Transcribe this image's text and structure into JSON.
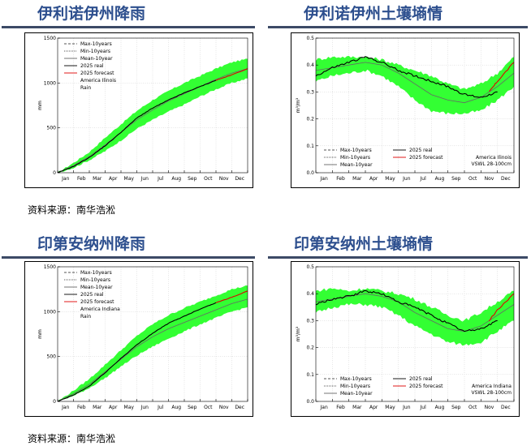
{
  "titles": {
    "t1": "伊利诺伊州降雨",
    "t2": "伊利诺伊州土壤墒情",
    "t3": "印第安纳州降雨",
    "t4": "印第安纳州土壤墒情"
  },
  "source": {
    "s1": "资料来源：南华浩淞",
    "s2": "资料来源：南华浩淞"
  },
  "colors": {
    "band": "#33ff33",
    "real": "#000000",
    "forecast": "#dd0000",
    "mean": "#666666",
    "title": "#2d4f8e"
  },
  "chart_data": [
    {
      "type": "line",
      "id": "il_rain",
      "ylabel": "mm",
      "ylim": [
        0,
        1500
      ],
      "yticks": [
        "0",
        "500",
        "1000",
        "1500"
      ],
      "yticks_val": [
        0,
        500,
        1000,
        1500
      ],
      "months": [
        "Jan",
        "Feb",
        "Mar",
        "Apr",
        "May",
        "Jun",
        "Jul",
        "Aug",
        "Sep",
        "Oct",
        "Nov",
        "Dec"
      ],
      "legend": {
        "max": "Max-10years",
        "min": "Min-10years",
        "mean": "Mean-10year",
        "real": "2025 real",
        "forecast": "2025 forecast",
        "region": "America Ilinois",
        "var": "Rain"
      },
      "x": [
        0,
        1,
        2,
        3,
        4,
        5,
        6,
        7,
        8,
        9,
        10,
        11,
        12
      ],
      "band_max": [
        0,
        110,
        230,
        390,
        540,
        690,
        810,
        910,
        1000,
        1080,
        1160,
        1230,
        1270
      ],
      "band_min": [
        0,
        55,
        140,
        240,
        360,
        490,
        590,
        680,
        760,
        850,
        930,
        1000,
        1050
      ],
      "mean": [
        0,
        80,
        180,
        310,
        450,
        590,
        700,
        800,
        880,
        960,
        1040,
        1110,
        1160
      ],
      "real": [
        0,
        70,
        170,
        300,
        450,
        610,
        720,
        810,
        890,
        960,
        1030
      ],
      "forecast": [
        [
          10,
          1030
        ],
        [
          11,
          1090
        ],
        [
          12,
          1160
        ]
      ]
    },
    {
      "type": "line",
      "id": "il_soil",
      "ylabel": "m³/m³",
      "ylim": [
        0,
        0.5
      ],
      "yticks": [
        "0.0",
        "0.1",
        "0.2",
        "0.3",
        "0.4",
        "0.5"
      ],
      "yticks_val": [
        0,
        0.1,
        0.2,
        0.3,
        0.4,
        0.5
      ],
      "months": [
        "Jan",
        "Feb",
        "Mar",
        "Apr",
        "May",
        "Jun",
        "Jul",
        "Aug",
        "Sep",
        "Oct",
        "Nov",
        "Dec"
      ],
      "legend": {
        "max": "Max-10years",
        "min": "Min-10years",
        "mean": "Mean-10year",
        "real": "2025 real",
        "forecast": "2025 forecast",
        "region": "America Ilinois",
        "var": "VSWL 28-100cm"
      },
      "x": [
        0,
        1,
        2,
        3,
        4,
        5,
        6,
        7,
        8,
        9,
        10,
        11,
        12
      ],
      "band_max": [
        0.42,
        0.43,
        0.43,
        0.43,
        0.42,
        0.4,
        0.38,
        0.36,
        0.33,
        0.31,
        0.33,
        0.37,
        0.43
      ],
      "band_min": [
        0.34,
        0.36,
        0.37,
        0.38,
        0.36,
        0.32,
        0.27,
        0.23,
        0.22,
        0.22,
        0.23,
        0.27,
        0.32
      ],
      "mean": [
        0.38,
        0.39,
        0.4,
        0.41,
        0.4,
        0.37,
        0.33,
        0.29,
        0.27,
        0.26,
        0.28,
        0.32,
        0.37
      ],
      "real": [
        0.36,
        0.39,
        0.41,
        0.43,
        0.41,
        0.38,
        0.36,
        0.34,
        0.32,
        0.29,
        0.28,
        0.3
      ],
      "forecast": [
        [
          10.5,
          0.3
        ],
        [
          11,
          0.34
        ],
        [
          12,
          0.41
        ]
      ]
    },
    {
      "type": "line",
      "id": "in_rain",
      "ylabel": "mm",
      "ylim": [
        0,
        1500
      ],
      "yticks": [
        "0",
        "500",
        "1000",
        "1500"
      ],
      "yticks_val": [
        0,
        500,
        1000,
        1500
      ],
      "months": [
        "Jan",
        "Feb",
        "Mar",
        "Apr",
        "May",
        "Jun",
        "Jul",
        "Aug",
        "Sep",
        "Oct",
        "Nov",
        "Dec"
      ],
      "legend": {
        "max": "Max-10years",
        "min": "Min-10years",
        "mean": "Mean-10year",
        "real": "2025 real",
        "forecast": "2025 forecast",
        "region": "America Indiana",
        "var": "Rain"
      },
      "x": [
        0,
        1,
        2,
        3,
        4,
        5,
        6,
        7,
        8,
        9,
        10,
        11,
        12
      ],
      "band_max": [
        0,
        120,
        250,
        410,
        570,
        730,
        860,
        960,
        1040,
        1110,
        1180,
        1250,
        1290
      ],
      "band_min": [
        0,
        60,
        150,
        260,
        390,
        510,
        610,
        700,
        780,
        860,
        930,
        1000,
        1050
      ],
      "mean": [
        0,
        85,
        190,
        330,
        470,
        610,
        720,
        810,
        880,
        950,
        1020,
        1090,
        1140
      ],
      "real": [
        0,
        70,
        170,
        320,
        480,
        630,
        760,
        870,
        950,
        1030,
        1100
      ],
      "forecast": [
        [
          10,
          1100
        ],
        [
          11,
          1160
        ],
        [
          12,
          1230
        ]
      ]
    },
    {
      "type": "line",
      "id": "in_soil",
      "ylabel": "m³/m³",
      "ylim": [
        0,
        0.5
      ],
      "yticks": [
        "0.0",
        "0.1",
        "0.2",
        "0.3",
        "0.4",
        "0.5"
      ],
      "yticks_val": [
        0,
        0.1,
        0.2,
        0.3,
        0.4,
        0.5
      ],
      "months": [
        "Jan",
        "Feb",
        "Mar",
        "Apr",
        "May",
        "Jun",
        "Jul",
        "Aug",
        "Sep",
        "Oct",
        "Nov",
        "Dec"
      ],
      "legend": {
        "max": "Max-10years",
        "min": "Min-10years",
        "mean": "Mean-10year",
        "real": "2025 real",
        "forecast": "2025 forecast",
        "region": "America Indiana",
        "var": "VSWL 28-100cm"
      },
      "x": [
        0,
        1,
        2,
        3,
        4,
        5,
        6,
        7,
        8,
        9,
        10,
        11,
        12
      ],
      "band_max": [
        0.41,
        0.42,
        0.41,
        0.42,
        0.41,
        0.4,
        0.38,
        0.35,
        0.32,
        0.3,
        0.33,
        0.37,
        0.41
      ],
      "band_min": [
        0.33,
        0.35,
        0.36,
        0.36,
        0.35,
        0.32,
        0.28,
        0.25,
        0.22,
        0.21,
        0.22,
        0.26,
        0.3
      ],
      "mean": [
        0.37,
        0.38,
        0.39,
        0.4,
        0.39,
        0.37,
        0.33,
        0.3,
        0.27,
        0.26,
        0.28,
        0.32,
        0.36
      ],
      "real": [
        0.36,
        0.38,
        0.39,
        0.41,
        0.4,
        0.37,
        0.35,
        0.32,
        0.29,
        0.26,
        0.27,
        0.3
      ],
      "forecast": [
        [
          10.5,
          0.3
        ],
        [
          11,
          0.34
        ],
        [
          12,
          0.4
        ]
      ]
    }
  ]
}
